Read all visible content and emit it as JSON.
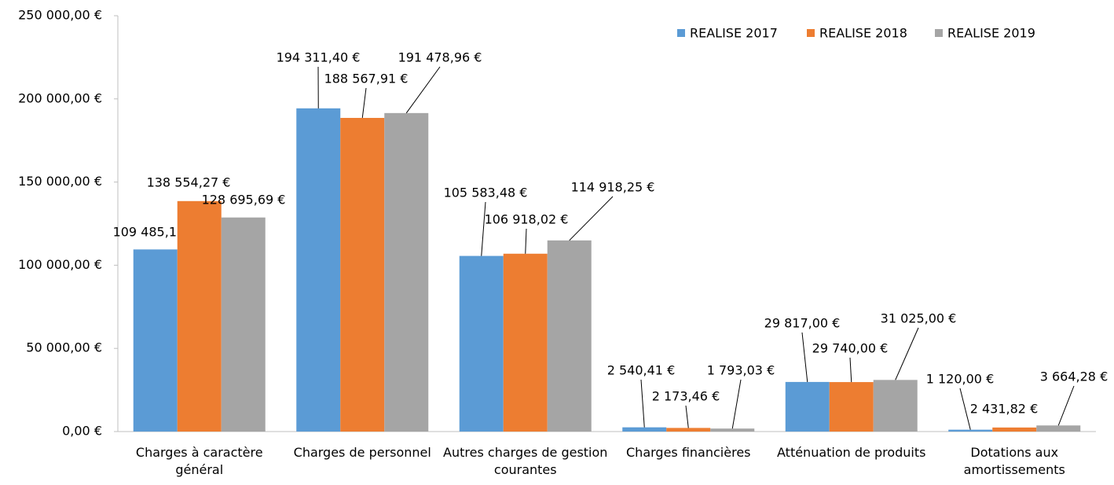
{
  "chart_data": {
    "type": "bar",
    "categories": [
      "Charges à caractère général",
      "Charges de personnel",
      "Autres charges de gestion courantes",
      "Charges financières",
      "Atténuation de produits",
      "Dotations aux amortissements"
    ],
    "series": [
      {
        "name": "REALISE 2017",
        "color": "#5b9bd5",
        "values": [
          109485.15,
          194311.4,
          105583.48,
          2540.41,
          29817.0,
          1120.0
        ],
        "value_labels": [
          "109 485,15 €",
          "194 311,40 €",
          "105 583,48 €",
          "2 540,41 €",
          "29 817,00 €",
          "1 120,00 €"
        ]
      },
      {
        "name": "REALISE 2018",
        "color": "#ed7d31",
        "values": [
          138554.27,
          188567.91,
          106918.02,
          2173.46,
          29740.0,
          2431.82
        ],
        "value_labels": [
          "138 554,27 €",
          "188 567,91 €",
          "106 918,02 €",
          "2 173,46 €",
          "29 740,00 €",
          "2 431,82 €"
        ]
      },
      {
        "name": "REALISE 2019",
        "color": "#a5a5a5",
        "values": [
          128695.69,
          191478.96,
          114918.25,
          1793.03,
          31025.0,
          3664.28
        ],
        "value_labels": [
          "128 695,69 €",
          "191 478,96 €",
          "114 918,25 €",
          "1 793,03 €",
          "31 025,00 €",
          "3 664,28 €"
        ]
      }
    ],
    "ylim": [
      0,
      250000
    ],
    "yticks": [
      {
        "value": 0,
        "label": "0,00 €"
      },
      {
        "value": 50000,
        "label": "50 000,00 €"
      },
      {
        "value": 100000,
        "label": "100 000,00 €"
      },
      {
        "value": 150000,
        "label": "150 000,00 €"
      },
      {
        "value": 200000,
        "label": "200 000,00 €"
      },
      {
        "value": 250000,
        "label": "250 000,00 €"
      }
    ],
    "legend": "top-right"
  }
}
